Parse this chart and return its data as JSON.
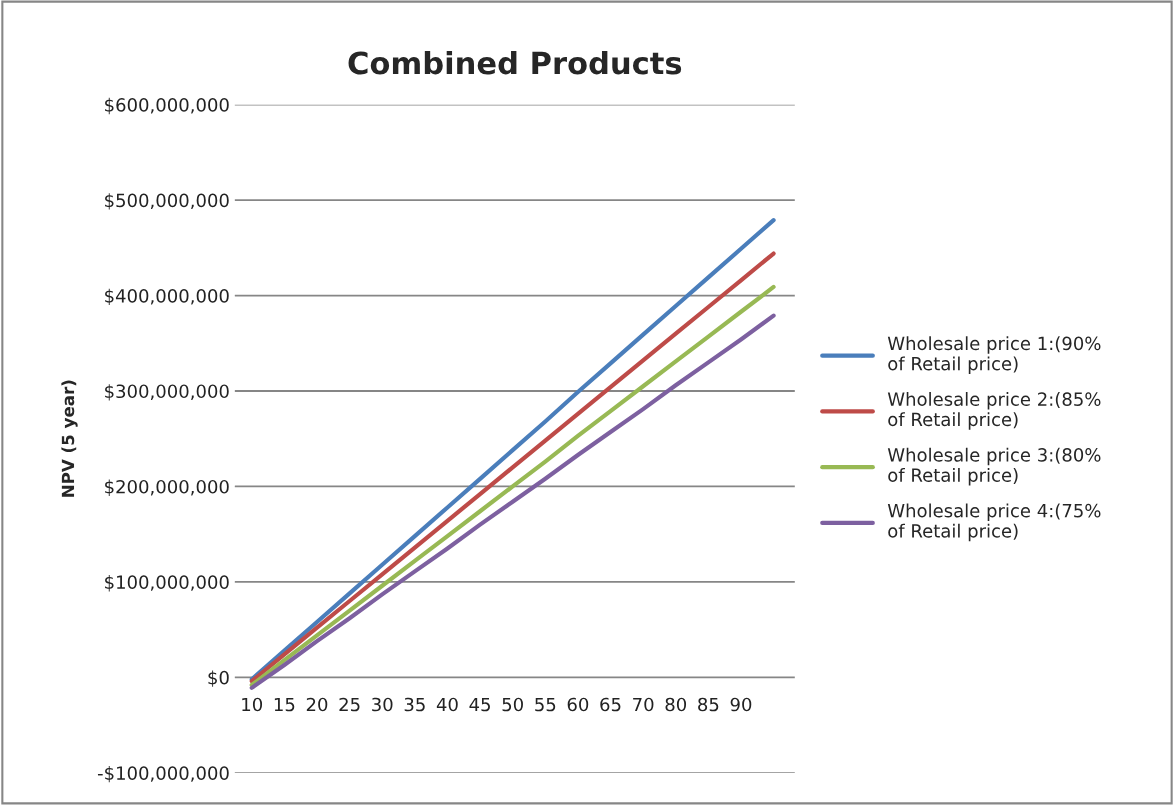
{
  "chart_data": {
    "type": "line",
    "title": "Combined Products",
    "ylabel": "NPV (5 year)",
    "categories": [
      "10",
      "15",
      "20",
      "25",
      "30",
      "35",
      "40",
      "45",
      "50",
      "55",
      "60",
      "65",
      "70",
      "80",
      "85",
      "90",
      null
    ],
    "series": [
      {
        "name": "Wholesale price 1:(90%\nof Retail price)",
        "color": "#4a7ebb",
        "values": [
          -2000000,
          28000000,
          58000000,
          88000000,
          118000000,
          148000000,
          178000000,
          208000000,
          238000000,
          268000000,
          299000000,
          329000000,
          359000000,
          389000000,
          419000000,
          449000000,
          479000000
        ]
      },
      {
        "name": "Wholesale price 2:(85%\nof Retail price)",
        "color": "#be4b48",
        "values": [
          -4000000,
          24000000,
          52000000,
          80000000,
          108000000,
          136000000,
          164000000,
          192000000,
          220000000,
          248000000,
          276000000,
          304000000,
          332000000,
          360000000,
          388000000,
          416000000,
          444000000
        ]
      },
      {
        "name": "Wholesale price 3:(80%\nof Retail price)",
        "color": "#98b954",
        "values": [
          -8000000,
          18000000,
          44000000,
          70000000,
          96000000,
          122000000,
          148000000,
          174000000,
          200000000,
          226000000,
          253000000,
          279000000,
          305000000,
          331000000,
          357000000,
          383000000,
          409000000
        ]
      },
      {
        "name": "Wholesale price 4:(75%\nof Retail price)",
        "color": "#7d60a0",
        "values": [
          -11000000,
          13000000,
          38000000,
          62000000,
          87000000,
          111000000,
          135000000,
          160000000,
          184000000,
          208000000,
          233000000,
          257000000,
          281000000,
          306000000,
          330000000,
          354000000,
          379000000
        ]
      }
    ],
    "ylim": [
      -100000000,
      600000000
    ],
    "yticks": [
      {
        "value": -100000000,
        "label": "-$100,000,000"
      },
      {
        "value": 0,
        "label": "$0"
      },
      {
        "value": 100000000,
        "label": "$100,000,000"
      },
      {
        "value": 200000000,
        "label": "$200,000,000"
      },
      {
        "value": 300000000,
        "label": "$300,000,000"
      },
      {
        "value": 400000000,
        "label": "$400,000,000"
      },
      {
        "value": 500000000,
        "label": "$500,000,000"
      },
      {
        "value": 600000000,
        "label": "$600,000,000"
      }
    ],
    "grid": "y",
    "legend": "right",
    "line_style": "solid",
    "marker": "none"
  }
}
